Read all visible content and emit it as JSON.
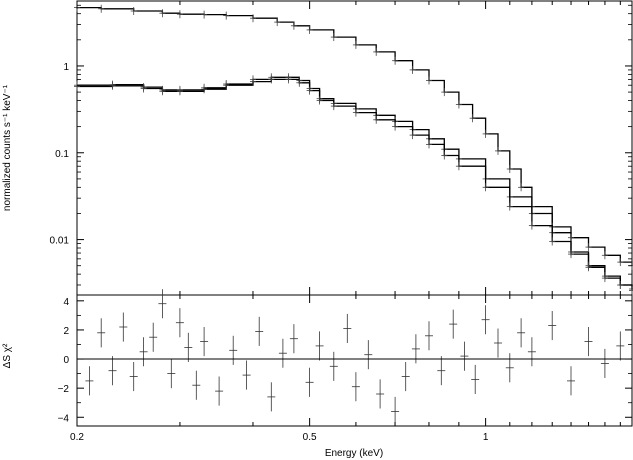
{
  "chart_data": [
    {
      "type": "line",
      "panel": "spectrum",
      "xlabel": "Energy (keV)",
      "ylabel": "normalized counts s⁻¹ keV⁻¹",
      "xscale": "log",
      "yscale": "log",
      "xlim": [
        0.2,
        1.78
      ],
      "ylim": [
        0.0023,
        5.6
      ],
      "x_ticks": [
        0.2,
        0.5,
        1
      ],
      "x_tick_labels": [
        "0.2",
        "0.5",
        "1"
      ],
      "y_ticks": [
        0.01,
        0.1,
        1
      ],
      "y_tick_labels": [
        "0.01",
        "0.1",
        "1"
      ],
      "grid": false,
      "series": [
        {
          "role": "data+model",
          "x": [
            0.2,
            0.22,
            0.25,
            0.28,
            0.3,
            0.33,
            0.36,
            0.4,
            0.44,
            0.47,
            0.5,
            0.55,
            0.6,
            0.65,
            0.7,
            0.75,
            0.8,
            0.85,
            0.9,
            0.95,
            1.0,
            1.05,
            1.1,
            1.15,
            1.2,
            1.3,
            1.4,
            1.5,
            1.6,
            1.7,
            1.78
          ],
          "y": [
            4.7,
            4.55,
            4.3,
            4.05,
            3.95,
            3.9,
            3.8,
            3.55,
            3.2,
            2.9,
            2.6,
            2.15,
            1.75,
            1.45,
            1.15,
            0.9,
            0.68,
            0.5,
            0.36,
            0.25,
            0.165,
            0.105,
            0.065,
            0.04,
            0.024,
            0.012,
            0.0072,
            0.0048,
            0.0036,
            0.003,
            0.0027
          ]
        },
        {
          "role": "data+model",
          "x": [
            0.2,
            0.23,
            0.26,
            0.28,
            0.3,
            0.33,
            0.36,
            0.4,
            0.43,
            0.46,
            0.48,
            0.5,
            0.52,
            0.55,
            0.6,
            0.65,
            0.7,
            0.75,
            0.8,
            0.85,
            0.9,
            1.0,
            1.1,
            1.2,
            1.3,
            1.4,
            1.5,
            1.6,
            1.7,
            1.78
          ],
          "y": [
            0.6,
            0.61,
            0.57,
            0.53,
            0.53,
            0.56,
            0.62,
            0.7,
            0.74,
            0.74,
            0.68,
            0.55,
            0.42,
            0.37,
            0.32,
            0.27,
            0.23,
            0.185,
            0.145,
            0.11,
            0.085,
            0.05,
            0.031,
            0.02,
            0.014,
            0.0105,
            0.0082,
            0.0066,
            0.0055,
            0.005
          ]
        },
        {
          "role": "data+model",
          "x": [
            0.2,
            0.23,
            0.26,
            0.28,
            0.3,
            0.33,
            0.36,
            0.4,
            0.43,
            0.46,
            0.48,
            0.5,
            0.52,
            0.55,
            0.6,
            0.65,
            0.7,
            0.75,
            0.8,
            0.85,
            0.9,
            1.0,
            1.1,
            1.2,
            1.3,
            1.4,
            1.5,
            1.6,
            1.7,
            1.78
          ],
          "y": [
            0.58,
            0.59,
            0.55,
            0.51,
            0.51,
            0.54,
            0.6,
            0.66,
            0.7,
            0.7,
            0.64,
            0.52,
            0.4,
            0.345,
            0.29,
            0.24,
            0.2,
            0.16,
            0.125,
            0.093,
            0.07,
            0.04,
            0.024,
            0.0145,
            0.0095,
            0.0068,
            0.005,
            0.0038,
            0.003,
            0.0026
          ]
        }
      ]
    },
    {
      "type": "scatter",
      "panel": "residuals",
      "xlabel": "Energy (keV)",
      "ylabel": "ΔS χ²",
      "xscale": "log",
      "xlim": [
        0.2,
        1.78
      ],
      "ylim": [
        -4.6,
        4.4
      ],
      "x_ticks": [
        0.2,
        0.5,
        1
      ],
      "x_tick_labels": [
        "0.2",
        "0.5",
        "1"
      ],
      "y_ticks": [
        -4,
        -2,
        0,
        2,
        4
      ],
      "y_tick_labels": [
        "−4",
        "−2",
        "0",
        "2",
        "4"
      ],
      "reference_line": 0,
      "series": [
        {
          "role": "residual",
          "x": [
            0.21,
            0.22,
            0.23,
            0.24,
            0.25,
            0.26,
            0.27,
            0.28,
            0.29,
            0.3,
            0.31,
            0.32,
            0.33,
            0.35,
            0.37,
            0.39,
            0.41,
            0.43,
            0.45,
            0.47,
            0.5,
            0.52,
            0.55,
            0.58,
            0.6,
            0.63,
            0.66,
            0.7,
            0.73,
            0.76,
            0.8,
            0.84,
            0.88,
            0.92,
            0.96,
            1.0,
            1.05,
            1.1,
            1.15,
            1.2,
            1.3,
            1.4,
            1.5,
            1.6,
            1.7
          ],
          "y": [
            -1.5,
            1.8,
            -0.8,
            2.2,
            -1.2,
            0.5,
            1.5,
            3.8,
            -1.0,
            2.5,
            0.8,
            -1.8,
            1.2,
            -2.2,
            0.6,
            -1.1,
            1.9,
            -2.6,
            0.4,
            1.4,
            -1.6,
            0.9,
            -0.5,
            2.1,
            -1.9,
            0.3,
            -2.4,
            -3.6,
            -1.2,
            0.7,
            1.6,
            -0.8,
            2.4,
            0.2,
            -1.4,
            2.7,
            1.1,
            -0.6,
            1.8,
            0.5,
            2.3,
            -1.5,
            1.2,
            -0.3,
            0.9
          ],
          "err": [
            1.0,
            1.0,
            1.0,
            1.0,
            1.0,
            1.0,
            1.0,
            1.0,
            1.0,
            1.0,
            1.0,
            1.0,
            1.0,
            1.0,
            1.0,
            1.0,
            1.0,
            1.0,
            1.0,
            1.0,
            1.0,
            1.0,
            1.0,
            1.0,
            1.0,
            1.0,
            1.0,
            1.0,
            1.0,
            1.0,
            1.0,
            1.0,
            1.0,
            1.0,
            1.0,
            1.0,
            1.0,
            1.0,
            1.0,
            1.0,
            1.0,
            1.0,
            1.0,
            1.0,
            1.0
          ]
        }
      ]
    }
  ]
}
